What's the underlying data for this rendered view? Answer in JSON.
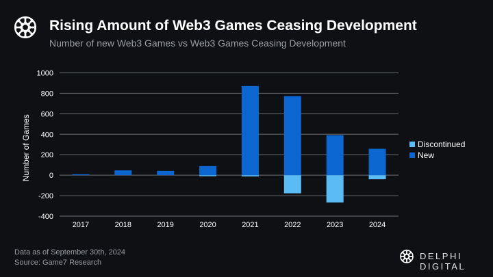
{
  "header": {
    "title": "Rising Amount of Web3 Games Ceasing Development",
    "subtitle": "Number of new Web3 Games vs Web3 Games Ceasing Development",
    "logo_icon": "knot-ring-logo-icon"
  },
  "footer": {
    "note": "Data as of September 30th, 2024",
    "source": "Source: Game7 Research",
    "brand": "DELPHI DIGITAL"
  },
  "colors": {
    "new": "#0b66d0",
    "discontinued": "#5bbcf5",
    "background": "#0e1013",
    "grid": "#5a5d62"
  },
  "chart_data": {
    "type": "bar",
    "stacked": true,
    "title": "Rising Amount of Web3 Games Ceasing Development",
    "subtitle": "Number of new Web3 Games vs Web3 Games Ceasing Development",
    "xlabel": "",
    "ylabel": "Number of Games",
    "ylim": [
      -400,
      1000
    ],
    "yticks": [
      -400,
      -200,
      0,
      200,
      400,
      600,
      800,
      1000
    ],
    "grid": true,
    "legend_position": "right",
    "categories": [
      "2017",
      "2018",
      "2019",
      "2020",
      "2021",
      "2022",
      "2023",
      "2024"
    ],
    "series": [
      {
        "name": "Discontinued",
        "values": [
          0,
          0,
          0,
          -10,
          -12,
          -177,
          -267,
          -40
        ]
      },
      {
        "name": "New",
        "values": [
          10,
          47,
          42,
          89,
          871,
          773,
          391,
          258
        ]
      }
    ]
  }
}
